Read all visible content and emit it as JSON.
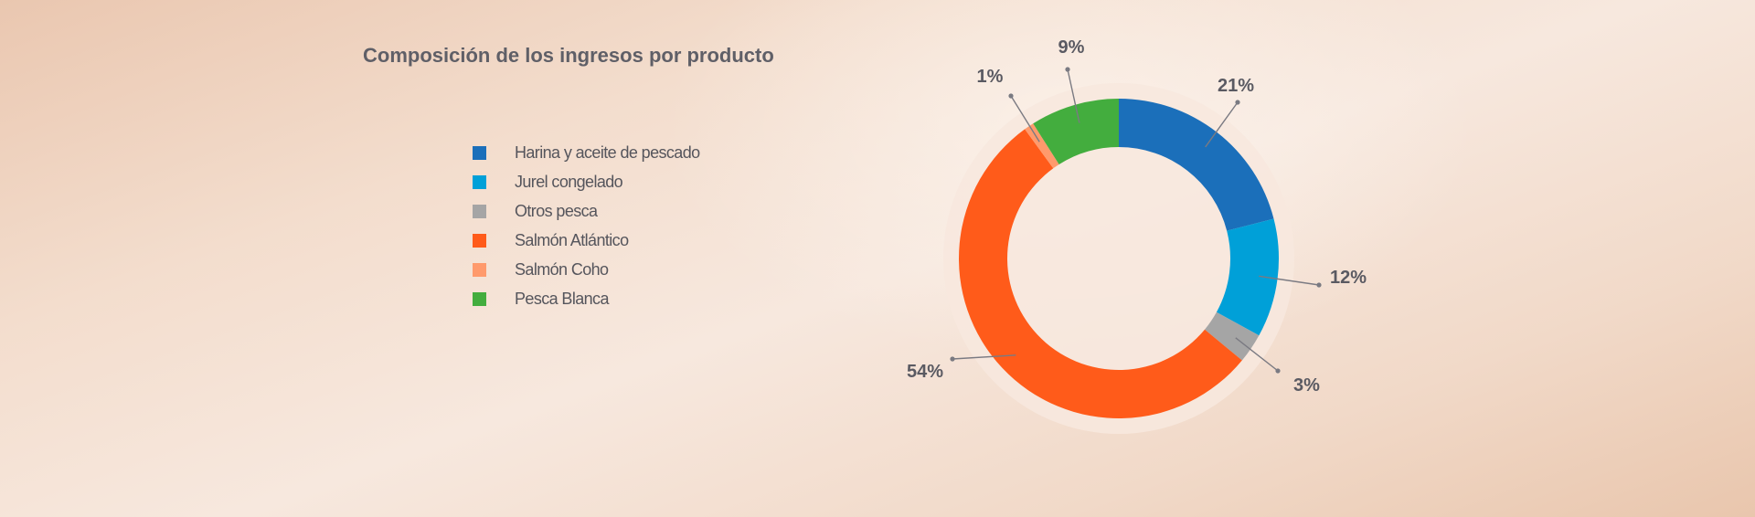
{
  "chart_data": {
    "type": "pie",
    "title": "Composición de los ingresos por producto",
    "categories": [
      "Harina y aceite de pescado",
      "Jurel congelado",
      "Otros pesca",
      "Salmón Atlántico",
      "Salmón Coho",
      "Pesca Blanca"
    ],
    "values": [
      21,
      12,
      3,
      54,
      1,
      9
    ],
    "data_labels": [
      "21%",
      "12%",
      "3%",
      "54%",
      "1%",
      "9%"
    ],
    "colors": [
      "#1b6fba",
      "#00a0d8",
      "#a5a5a5",
      "#ff5b1a",
      "#ff9a6c",
      "#43ad3e"
    ],
    "donut": true,
    "legend": "left"
  }
}
